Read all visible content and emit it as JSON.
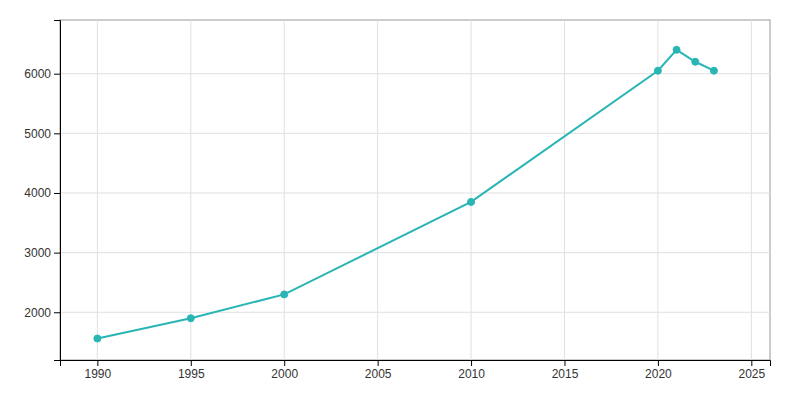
{
  "chart_data": {
    "type": "line",
    "x": [
      1990,
      1995,
      2000,
      2010,
      2020,
      2021,
      2022,
      2023
    ],
    "values": [
      1560,
      1900,
      2300,
      3850,
      6050,
      6400,
      6200,
      6050
    ],
    "color": "#2ab5b5",
    "marker": "circle",
    "xlim": [
      1988,
      2026
    ],
    "ylim": [
      1200,
      6900
    ],
    "xticks": [
      1990,
      1995,
      2000,
      2005,
      2010,
      2015,
      2020,
      2025
    ],
    "yticks": [
      2000,
      3000,
      4000,
      5000,
      6000
    ],
    "grid": true
  }
}
